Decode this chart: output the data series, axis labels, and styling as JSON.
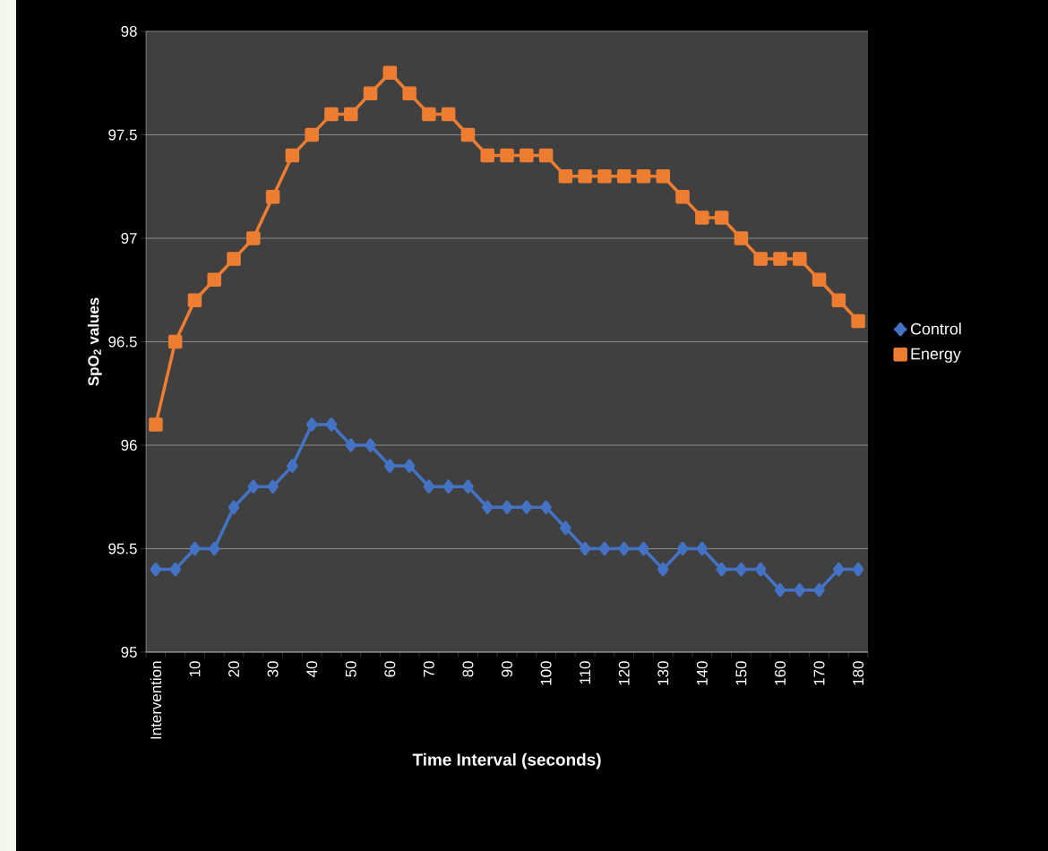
{
  "chart_data": {
    "type": "line",
    "xlabel": "Time Interval (seconds)",
    "ylabel": "SpO$_{2}$ values",
    "categories": [
      "Intervention",
      null,
      "10",
      null,
      "20",
      null,
      "30",
      null,
      "40",
      null,
      "50",
      null,
      "60",
      null,
      "70",
      null,
      "80",
      null,
      "90",
      null,
      "100",
      null,
      "110",
      null,
      "120",
      null,
      "130",
      null,
      "140",
      null,
      "150",
      null,
      "160",
      null,
      "170",
      null,
      "180"
    ],
    "series": [
      {
        "name": "Control",
        "color": "#4472c4",
        "marker": "diamond",
        "values": [
          95.4,
          95.4,
          95.5,
          95.5,
          95.7,
          95.8,
          95.8,
          95.9,
          96.1,
          96.1,
          96.0,
          96.0,
          95.9,
          95.9,
          95.8,
          95.8,
          95.8,
          95.7,
          95.7,
          95.7,
          95.7,
          95.6,
          95.5,
          95.5,
          95.5,
          95.5,
          95.4,
          95.5,
          95.5,
          95.4,
          95.4,
          95.4,
          95.3,
          95.3,
          95.3,
          95.4,
          95.4
        ]
      },
      {
        "name": "Energy",
        "color": "#ed7d31",
        "marker": "square",
        "values": [
          96.1,
          96.5,
          96.7,
          96.8,
          96.9,
          97.0,
          97.2,
          97.4,
          97.5,
          97.6,
          97.6,
          97.7,
          97.8,
          97.7,
          97.6,
          97.6,
          97.5,
          97.4,
          97.4,
          97.4,
          97.4,
          97.3,
          97.3,
          97.3,
          97.3,
          97.3,
          97.3,
          97.2,
          97.1,
          97.1,
          97.0,
          96.9,
          96.9,
          96.9,
          96.8,
          96.7,
          96.6
        ]
      }
    ],
    "ylim": [
      95,
      98
    ],
    "yticks": [
      95,
      95.5,
      96,
      96.5,
      97,
      97.5,
      98
    ],
    "grid": "y",
    "legend": "right",
    "line_style": "solid"
  }
}
